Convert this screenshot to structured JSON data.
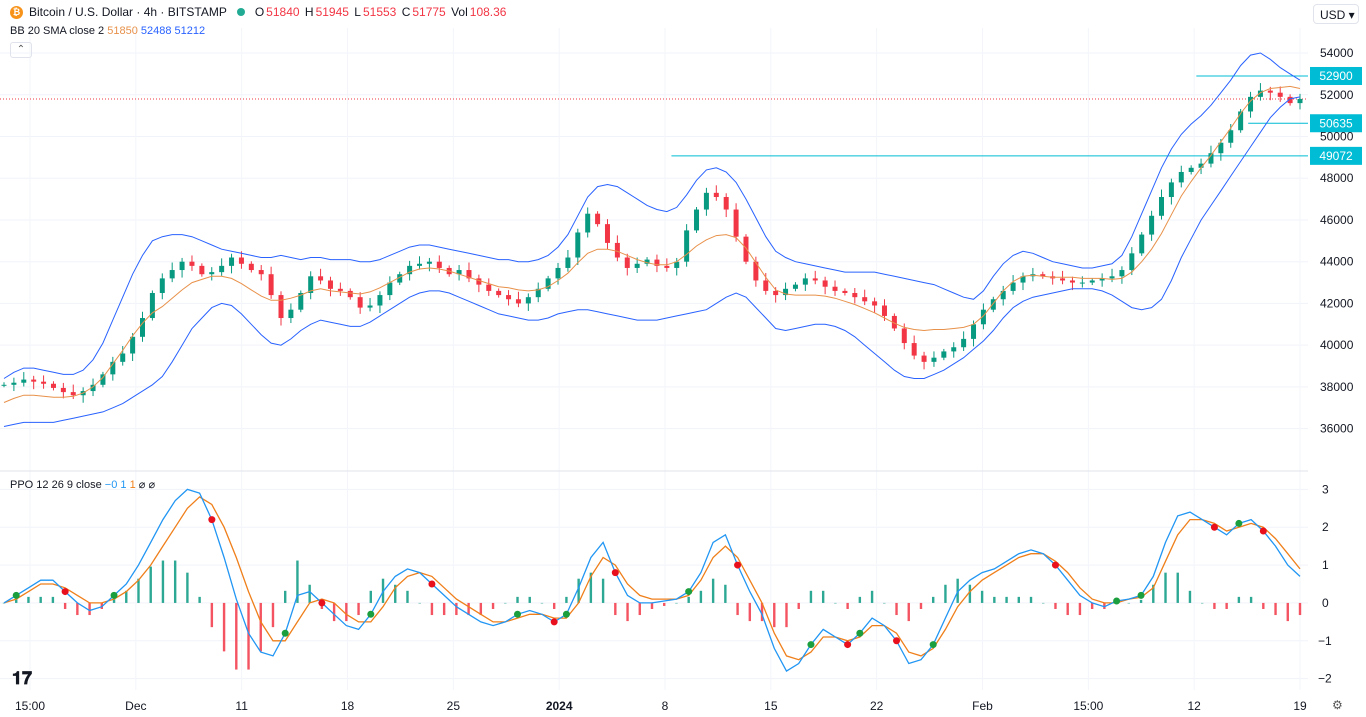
{
  "header": {
    "symbol": "Bitcoin / U.S. Dollar · 4h · BITSTAMP",
    "o_label": "O",
    "o": "51840",
    "h_label": "H",
    "h": "51945",
    "l_label": "L",
    "l": "51553",
    "c_label": "C",
    "c": "51775",
    "vol_label": "Vol",
    "vol": "108.36",
    "currency": "USD"
  },
  "bb": {
    "label": "BB 20 SMA close 2",
    "basis": "51850",
    "upper": "52488",
    "lower": "51212"
  },
  "ppo": {
    "label": "PPO 12 26 9 close",
    "v1": "−0",
    "v2": "1",
    "v3": "1",
    "v4": "⌀",
    "v5": "⌀"
  },
  "colors": {
    "up": "#089981",
    "down": "#f23645",
    "band": "#2962ff",
    "basis": "#e8914a",
    "ppo": "#2196f3",
    "signal": "#ef7f1a",
    "price_tag": "#00bcd4"
  },
  "chart_data": [
    {
      "type": "candlestick",
      "title": "Bitcoin / U.S. Dollar · 4h · BITSTAMP",
      "y_ticks": [
        36000,
        38000,
        40000,
        42000,
        44000,
        46000,
        48000,
        50000,
        52000,
        54000
      ],
      "x_ticks": [
        "15:00",
        "Dec",
        "11",
        "18",
        "25",
        "2024",
        "8",
        "15",
        "22",
        "Feb",
        "15:00",
        "12",
        "19"
      ],
      "ylim": [
        34400,
        55200
      ],
      "horizontal_levels": [
        52900,
        50635,
        49072
      ],
      "closes": [
        38100,
        38200,
        38350,
        38250,
        38150,
        37950,
        37750,
        37600,
        37800,
        38100,
        38600,
        39200,
        39600,
        40400,
        41300,
        42500,
        43200,
        43600,
        44000,
        43800,
        43400,
        43500,
        43800,
        44200,
        43900,
        43600,
        43400,
        42400,
        41300,
        41700,
        42500,
        43300,
        43100,
        42700,
        42600,
        42300,
        41800,
        41900,
        42400,
        43000,
        43400,
        43800,
        43900,
        44000,
        43700,
        43400,
        43600,
        43200,
        42900,
        42600,
        42400,
        42200,
        42000,
        42300,
        42700,
        43200,
        43700,
        44200,
        45400,
        46300,
        45800,
        44900,
        44200,
        43700,
        43900,
        44100,
        43800,
        43700,
        44000,
        45500,
        46500,
        47300,
        47100,
        46500,
        45200,
        44000,
        43100,
        42600,
        42400,
        42700,
        42900,
        43200,
        43100,
        42800,
        42600,
        42500,
        42300,
        42100,
        41900,
        41400,
        40800,
        40100,
        39500,
        39200,
        39400,
        39700,
        39900,
        40300,
        41000,
        41700,
        42200,
        42600,
        43000,
        43300,
        43400,
        43300,
        43200,
        43100,
        43000,
        43000,
        43100,
        43200,
        43300,
        43600,
        44400,
        45300,
        46200,
        47100,
        47800,
        48300,
        48500,
        48700,
        49200,
        49700,
        50300,
        51200,
        51900,
        52200,
        52100,
        51900,
        51600,
        51800
      ],
      "bb_upper": [
        38400,
        38700,
        38900,
        38900,
        38800,
        38700,
        38600,
        38600,
        38800,
        39300,
        40100,
        41200,
        42300,
        43400,
        44300,
        45000,
        45200,
        45300,
        45300,
        45200,
        45000,
        44800,
        44600,
        44500,
        44400,
        44300,
        44200,
        44200,
        44300,
        44200,
        44100,
        44200,
        44200,
        44100,
        44100,
        44100,
        44000,
        44000,
        44100,
        44300,
        44500,
        44700,
        44800,
        44800,
        44700,
        44600,
        44500,
        44400,
        44300,
        44200,
        44100,
        44100,
        44000,
        44000,
        44100,
        44300,
        44700,
        45300,
        46200,
        47100,
        47600,
        47700,
        47600,
        47300,
        47000,
        46700,
        46500,
        46400,
        46600,
        47200,
        47900,
        48400,
        48500,
        48300,
        47800,
        47000,
        46100,
        45200,
        44500,
        44200,
        44000,
        43900,
        43800,
        43700,
        43600,
        43500,
        43500,
        43500,
        43500,
        43400,
        43300,
        43200,
        43100,
        43000,
        42900,
        42700,
        42500,
        42300,
        42200,
        42600,
        43300,
        43900,
        44300,
        44500,
        44400,
        44200,
        44000,
        43900,
        43800,
        43700,
        43700,
        43800,
        43900,
        44300,
        45200,
        46300,
        47400,
        48500,
        49400,
        50100,
        50600,
        51000,
        51500,
        52100,
        52700,
        53400,
        53900,
        54000,
        53700,
        53300,
        53000,
        52700
      ],
      "bb_lower": [
        36100,
        36200,
        36300,
        36300,
        36300,
        36300,
        36400,
        36500,
        36600,
        36700,
        36800,
        37000,
        37200,
        37500,
        37800,
        38100,
        38500,
        39200,
        40000,
        40800,
        41300,
        41800,
        42000,
        41900,
        41500,
        41000,
        40500,
        40100,
        40000,
        40300,
        40700,
        41000,
        41200,
        41100,
        41000,
        40900,
        40900,
        41100,
        41400,
        41700,
        42000,
        42300,
        42500,
        42600,
        42600,
        42500,
        42300,
        42100,
        41900,
        41700,
        41500,
        41400,
        41300,
        41200,
        41200,
        41300,
        41500,
        41600,
        41700,
        41700,
        41600,
        41500,
        41400,
        41300,
        41200,
        41200,
        41200,
        41300,
        41400,
        41500,
        41600,
        41700,
        42000,
        42300,
        42500,
        42300,
        41800,
        41300,
        40800,
        40700,
        40800,
        40900,
        41000,
        41000,
        40900,
        40700,
        40400,
        40000,
        39600,
        39200,
        38800,
        38500,
        38400,
        38400,
        38600,
        38800,
        39100,
        39400,
        39800,
        40200,
        40700,
        41300,
        41800,
        42100,
        42300,
        42400,
        42500,
        42600,
        42700,
        42700,
        42700,
        42600,
        42400,
        42100,
        41800,
        41700,
        41800,
        42200,
        43100,
        44200,
        45100,
        46000,
        46700,
        47400,
        48100,
        48800,
        49500,
        50200,
        50900,
        51400,
        51800,
        51900
      ]
    },
    {
      "type": "line",
      "title": "PPO 12 26 9 close",
      "y_ticks": [
        -2,
        -1,
        0,
        1,
        2,
        3
      ],
      "ylim": [
        -2.3,
        3.3
      ],
      "ppo": [
        0.0,
        0.2,
        0.4,
        0.6,
        0.6,
        0.3,
        0.0,
        -0.2,
        -0.1,
        0.2,
        0.5,
        1.0,
        1.6,
        2.2,
        2.7,
        3.0,
        2.9,
        2.2,
        1.2,
        0.1,
        -0.8,
        -1.3,
        -1.4,
        -0.8,
        0.2,
        0.3,
        0.0,
        -0.3,
        -0.6,
        -0.7,
        -0.3,
        0.3,
        0.7,
        0.9,
        0.8,
        0.5,
        0.2,
        -0.1,
        -0.3,
        -0.5,
        -0.6,
        -0.5,
        -0.3,
        -0.2,
        -0.3,
        -0.5,
        -0.3,
        0.4,
        1.2,
        1.6,
        0.8,
        0.2,
        0.0,
        0.0,
        0.05,
        0.1,
        0.3,
        0.8,
        1.6,
        1.8,
        1.0,
        0.3,
        -0.3,
        -1.2,
        -1.8,
        -1.6,
        -1.1,
        -0.7,
        -0.9,
        -1.1,
        -0.8,
        -0.4,
        -0.6,
        -1.0,
        -1.6,
        -1.5,
        -1.1,
        -0.4,
        0.3,
        0.6,
        0.8,
        0.9,
        1.1,
        1.3,
        1.4,
        1.3,
        1.0,
        0.6,
        0.2,
        0.0,
        -0.1,
        0.05,
        0.1,
        0.2,
        0.7,
        1.6,
        2.3,
        2.4,
        2.2,
        2.0,
        1.8,
        2.1,
        2.2,
        1.9,
        1.5,
        1.0,
        0.7
      ],
      "signal": [
        0.0,
        0.1,
        0.3,
        0.5,
        0.5,
        0.4,
        0.2,
        0.0,
        0.0,
        0.1,
        0.3,
        0.6,
        1.0,
        1.5,
        2.0,
        2.5,
        2.8,
        2.6,
        2.0,
        1.2,
        0.3,
        -0.5,
        -1.0,
        -1.0,
        -0.5,
        0.0,
        0.1,
        0.0,
        -0.3,
        -0.5,
        -0.5,
        -0.1,
        0.4,
        0.7,
        0.8,
        0.7,
        0.4,
        0.1,
        -0.1,
        -0.3,
        -0.5,
        -0.5,
        -0.4,
        -0.3,
        -0.3,
        -0.4,
        -0.4,
        0.0,
        0.7,
        1.2,
        1.0,
        0.5,
        0.2,
        0.1,
        0.1,
        0.1,
        0.2,
        0.6,
        1.2,
        1.5,
        1.2,
        0.6,
        0.0,
        -0.8,
        -1.4,
        -1.5,
        -1.3,
        -0.9,
        -0.9,
        -1.0,
        -0.9,
        -0.6,
        -0.6,
        -0.8,
        -1.3,
        -1.4,
        -1.2,
        -0.7,
        -0.1,
        0.3,
        0.6,
        0.8,
        1.0,
        1.2,
        1.3,
        1.3,
        1.1,
        0.8,
        0.4,
        0.1,
        0.0,
        0.0,
        0.1,
        0.15,
        0.4,
        1.1,
        1.8,
        2.2,
        2.2,
        2.1,
        1.9,
        2.0,
        2.1,
        2.0,
        1.7,
        1.3,
        0.9
      ]
    }
  ]
}
